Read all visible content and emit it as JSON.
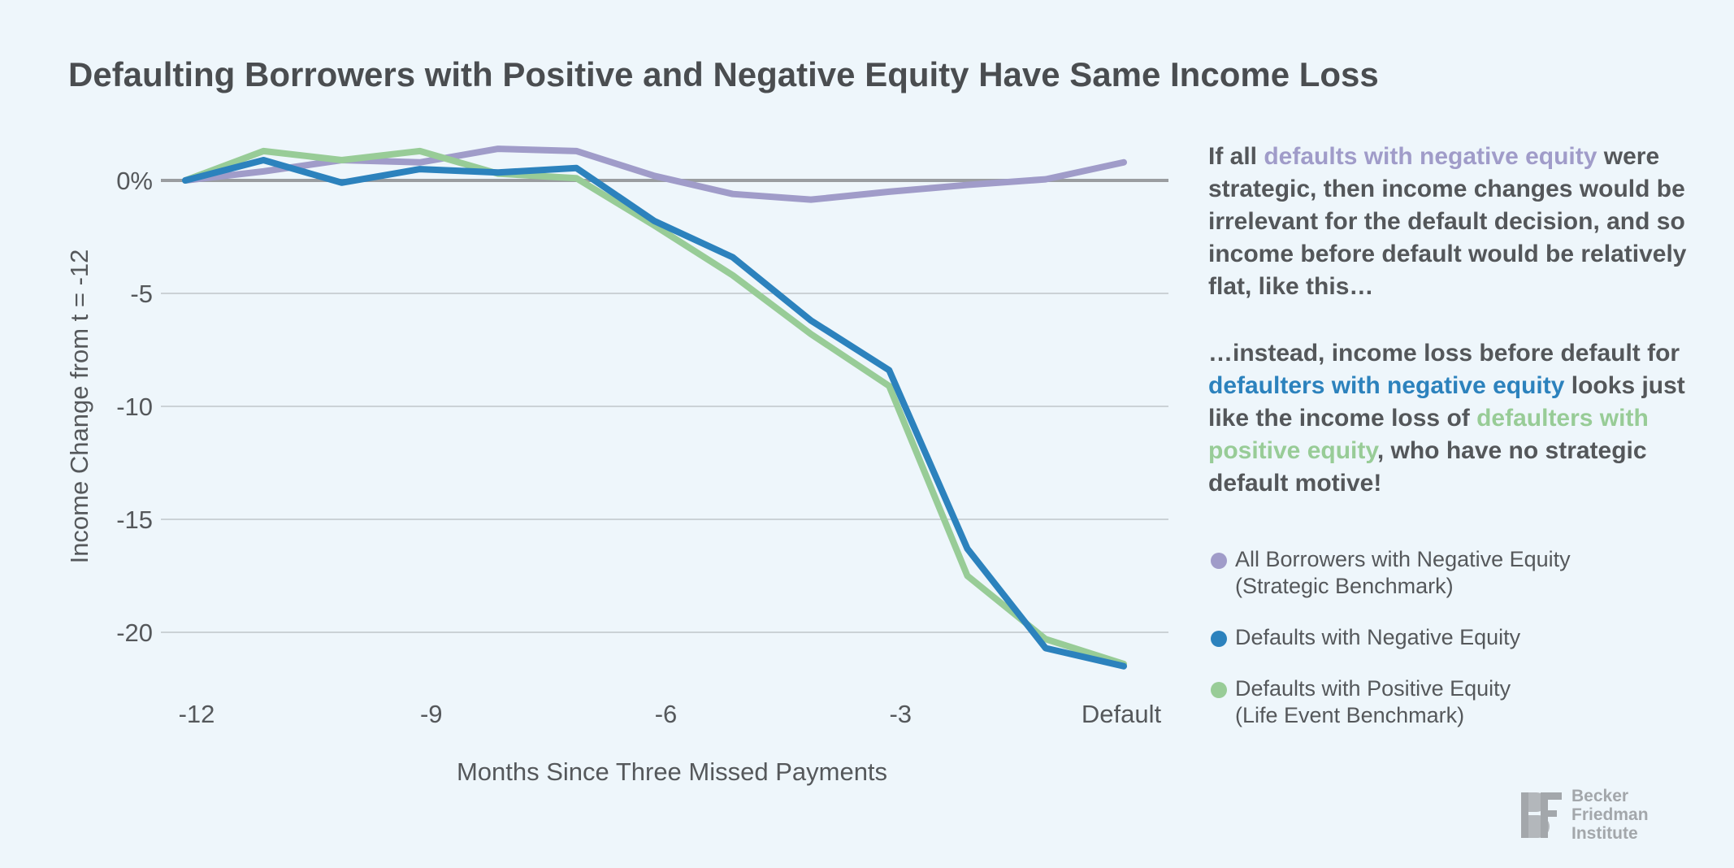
{
  "title": "Defaulting Borrowers with Positive and Negative Equity Have Same Income Loss",
  "annotation_1": {
    "before": "If all ",
    "highlight": "defaults with negative equity",
    "after": " were strategic, then income changes would be irrelevant for the default decision, and so income before default would be relatively flat, like this…"
  },
  "annotation_2": {
    "part1": "…instead, income loss before default for ",
    "highlight_blue": "defaulters with negative equity",
    "part2": " looks just like the income loss of ",
    "highlight_green": "defaulters with positive equity",
    "part3": ", who have no strategic default motive!"
  },
  "legend": [
    {
      "line1": "All Borrowers with Negative Equity",
      "line2": "(Strategic Benchmark)",
      "color": "#a09cc9"
    },
    {
      "line1": "Defaults with Negative Equity",
      "line2": "",
      "color": "#2c82bd"
    },
    {
      "line1": "Defaults with Positive Equity",
      "line2": "(Life Event Benchmark)",
      "color": "#98cc97"
    }
  ],
  "logo": {
    "line1": "Becker",
    "line2": "Friedman",
    "line3": "Institute"
  },
  "chart_data": {
    "type": "line",
    "title": "Defaulting Borrowers with Positive and Negative Equity Have Same Income Loss",
    "xlabel": "Months Since Three Missed Payments",
    "ylabel": "Income Change from t = -12",
    "x": [
      -12,
      -11,
      -10,
      -9,
      -8,
      -7,
      -6,
      -5,
      -4,
      -3,
      -2,
      -1,
      0
    ],
    "x_ticks": [
      {
        "value": -12,
        "label": "-12"
      },
      {
        "value": -9,
        "label": "-9"
      },
      {
        "value": -6,
        "label": "-6"
      },
      {
        "value": -3,
        "label": "-3"
      },
      {
        "value": 0,
        "label": "Default"
      }
    ],
    "y_ticks": [
      {
        "value": 0,
        "label": "0%"
      },
      {
        "value": -5,
        "label": "-5"
      },
      {
        "value": -10,
        "label": "-10"
      },
      {
        "value": -15,
        "label": "-15"
      },
      {
        "value": -20,
        "label": "-20"
      }
    ],
    "xlim": [
      -12,
      0
    ],
    "ylim": [
      -21.5,
      1.4
    ],
    "grid": true,
    "series": [
      {
        "name": "All Borrowers with Negative Equity (Strategic Benchmark)",
        "color": "#a09cc9",
        "values": [
          0,
          0.4,
          0.9,
          0.8,
          1.4,
          1.3,
          0.2,
          -0.6,
          -0.85,
          -0.5,
          -0.2,
          0.05,
          0.8
        ]
      },
      {
        "name": "Defaults with Positive Equity (Life Event Benchmark)",
        "color": "#98cc97",
        "values": [
          0,
          1.3,
          0.9,
          1.3,
          0.3,
          0.1,
          -2.0,
          -4.2,
          -6.8,
          -9.1,
          -17.5,
          -20.3,
          -21.4
        ]
      },
      {
        "name": "Defaults with Negative Equity",
        "color": "#2c82bd",
        "values": [
          0,
          0.9,
          -0.1,
          0.5,
          0.35,
          0.55,
          -1.8,
          -3.4,
          -6.2,
          -8.4,
          -16.3,
          -20.7,
          -21.5
        ]
      }
    ]
  }
}
